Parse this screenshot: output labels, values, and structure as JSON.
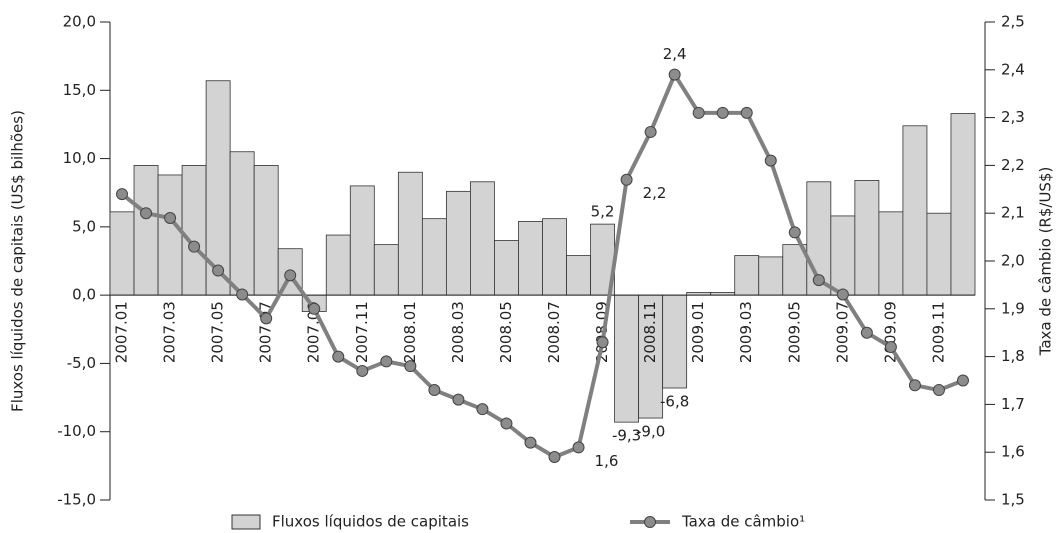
{
  "chart_data": {
    "type": "bar_line",
    "categories": [
      "2007.01",
      null,
      "2007.03",
      null,
      "2007.05",
      null,
      "2007.07",
      null,
      "2007.09",
      null,
      "2007.11",
      null,
      "2008.01",
      null,
      "2008.03",
      null,
      "2008.05",
      null,
      "2008.07",
      null,
      "2008.09",
      null,
      "2008.11",
      null,
      "2009.01",
      null,
      "2009.03",
      null,
      "2009.05",
      null,
      "2009.07",
      null,
      "2009.09",
      null,
      "2009.11",
      null
    ],
    "series": [
      {
        "name": "Fluxos líquidos de capitais",
        "color": "#d3d3d3",
        "type": "bar",
        "values": [
          6.1,
          9.5,
          8.8,
          9.5,
          15.7,
          10.5,
          9.5,
          3.4,
          -1.2,
          4.4,
          8.0,
          3.7,
          9.0,
          5.6,
          7.6,
          8.3,
          4.0,
          5.4,
          5.6,
          2.9,
          5.2,
          -9.3,
          -9.0,
          -6.8,
          0.2,
          0.2,
          2.9,
          2.8,
          3.7,
          8.3,
          5.8,
          8.4,
          6.1,
          12.4,
          6.0,
          13.3
        ],
        "value_labels": [
          null,
          null,
          null,
          null,
          null,
          null,
          null,
          null,
          null,
          null,
          null,
          null,
          null,
          null,
          null,
          null,
          null,
          null,
          null,
          null,
          "5,2",
          "-9,3",
          "-9,0",
          "-6,8",
          null,
          null,
          null,
          null,
          null,
          null,
          null,
          null,
          null,
          null,
          null,
          null
        ]
      },
      {
        "name": "Taxa de câmbio¹",
        "color": "#808080",
        "type": "line",
        "axis": "y2",
        "values": [
          2.14,
          2.1,
          2.09,
          2.03,
          1.98,
          1.93,
          1.88,
          1.97,
          1.9,
          1.8,
          1.77,
          1.79,
          1.78,
          1.73,
          1.71,
          1.69,
          1.66,
          1.62,
          1.59,
          1.61,
          1.83,
          2.17,
          2.27,
          2.39,
          2.31,
          2.31,
          2.31,
          2.21,
          2.06,
          1.96,
          1.93,
          1.85,
          1.82,
          1.74,
          1.73,
          1.75
        ],
        "value_labels": [
          null,
          null,
          null,
          null,
          null,
          null,
          null,
          null,
          null,
          null,
          null,
          null,
          null,
          null,
          null,
          null,
          null,
          null,
          null,
          "1,6",
          null,
          "2,2",
          null,
          "2,4",
          null,
          null,
          null,
          null,
          null,
          null,
          null,
          null,
          null,
          null,
          null,
          null
        ]
      }
    ],
    "y_label": "Fluxos líquidos de capitais (US$ bilhões)",
    "y2_label": "Taxa de câmbio (R$/US$)",
    "ylim": [
      -15,
      20
    ],
    "yticks": [
      {
        "value": -15,
        "label": "-15,0"
      },
      {
        "value": -10,
        "label": "-10,0"
      },
      {
        "value": -5,
        "label": "-5,0"
      },
      {
        "value": 0,
        "label": "0,0"
      },
      {
        "value": 5,
        "label": "5,0"
      },
      {
        "value": 10,
        "label": "10,0"
      },
      {
        "value": 15,
        "label": "15,0"
      },
      {
        "value": 20,
        "label": "20,0"
      }
    ],
    "y2lim": [
      1.5,
      2.5
    ],
    "y2ticks": [
      {
        "value": 1.5,
        "label": "1,5"
      },
      {
        "value": 1.6,
        "label": "1,6"
      },
      {
        "value": 1.7,
        "label": "1,7"
      },
      {
        "value": 1.8,
        "label": "1,8"
      },
      {
        "value": 1.9,
        "label": "1,9"
      },
      {
        "value": 2.0,
        "label": "2,0"
      },
      {
        "value": 2.1,
        "label": "2,1"
      },
      {
        "value": 2.2,
        "label": "2,2"
      },
      {
        "value": 2.3,
        "label": "2,3"
      },
      {
        "value": 2.4,
        "label": "2,4"
      },
      {
        "value": 2.5,
        "label": "2,5"
      }
    ],
    "legend": "bottom"
  }
}
